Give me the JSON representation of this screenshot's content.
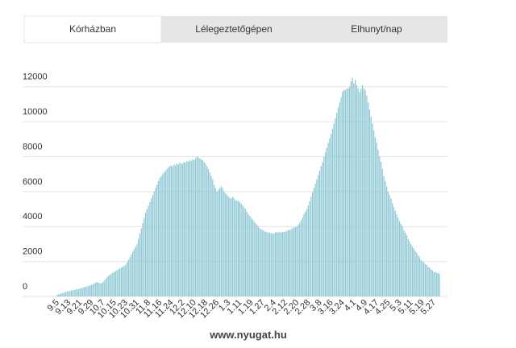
{
  "tabs": [
    "Kórházban",
    "Lélegeztetőgépen",
    "Elhunyt/nap"
  ],
  "source": "www.nyugat.hu",
  "chart_data": {
    "type": "bar",
    "color": "#8ec9d5",
    "grid": true,
    "ylim": [
      0,
      13000
    ],
    "yticks": [
      0,
      2000,
      4000,
      6000,
      8000,
      10000,
      12000
    ],
    "categories": [
      "9.5",
      null,
      null,
      null,
      null,
      null,
      null,
      null,
      "9.13",
      null,
      null,
      null,
      null,
      null,
      null,
      null,
      "9.21",
      null,
      null,
      null,
      null,
      null,
      null,
      null,
      "9.29",
      null,
      null,
      null,
      null,
      null,
      null,
      null,
      "10.7",
      null,
      null,
      null,
      null,
      null,
      null,
      null,
      "10.15",
      null,
      null,
      null,
      null,
      null,
      null,
      null,
      "10.23",
      null,
      null,
      null,
      null,
      null,
      null,
      null,
      "10.31",
      null,
      null,
      null,
      null,
      null,
      null,
      null,
      "11.8",
      null,
      null,
      null,
      null,
      null,
      null,
      null,
      "11.16",
      null,
      null,
      null,
      null,
      null,
      null,
      null,
      "11.24",
      null,
      null,
      null,
      null,
      null,
      null,
      null,
      "12.2",
      null,
      null,
      null,
      null,
      null,
      null,
      null,
      "12.10",
      null,
      null,
      null,
      null,
      null,
      null,
      null,
      "12.18",
      null,
      null,
      null,
      null,
      null,
      null,
      null,
      "12.26",
      null,
      null,
      null,
      null,
      null,
      null,
      null,
      "1.3",
      null,
      null,
      null,
      null,
      null,
      null,
      null,
      "1.11",
      null,
      null,
      null,
      null,
      null,
      null,
      null,
      "1.19",
      null,
      null,
      null,
      null,
      null,
      null,
      null,
      "1.27",
      null,
      null,
      null,
      null,
      null,
      null,
      null,
      "2.4",
      null,
      null,
      null,
      null,
      null,
      null,
      null,
      "2.12",
      null,
      null,
      null,
      null,
      null,
      null,
      null,
      "2.20",
      null,
      null,
      null,
      null,
      null,
      null,
      null,
      "2.28",
      null,
      null,
      null,
      null,
      null,
      null,
      null,
      "3.8",
      null,
      null,
      null,
      null,
      null,
      null,
      null,
      "3.16",
      null,
      null,
      null,
      null,
      null,
      null,
      null,
      "3.24",
      null,
      null,
      null,
      null,
      null,
      null,
      null,
      "4.1",
      null,
      null,
      null,
      null,
      null,
      null,
      null,
      "4.9",
      null,
      null,
      null,
      null,
      null,
      null,
      null,
      "4.17",
      null,
      null,
      null,
      null,
      null,
      null,
      null,
      "4.25",
      null,
      null,
      null,
      null,
      null,
      null,
      null,
      "5.3",
      null,
      null,
      null,
      null,
      null,
      null,
      null,
      "5.11",
      null,
      null,
      null,
      null,
      null,
      null,
      null,
      "5.19",
      null,
      null,
      null,
      null,
      null,
      null,
      null,
      "5.27",
      null,
      null,
      null,
      null
    ],
    "values": [
      100,
      120,
      150,
      170,
      200,
      230,
      250,
      280,
      300,
      320,
      340,
      350,
      370,
      390,
      410,
      430,
      450,
      480,
      500,
      530,
      550,
      580,
      600,
      630,
      650,
      700,
      750,
      800,
      820,
      780,
      760,
      760,
      800,
      900,
      1000,
      1100,
      1200,
      1250,
      1300,
      1350,
      1400,
      1450,
      1500,
      1550,
      1600,
      1650,
      1700,
      1750,
      1800,
      1950,
      2100,
      2250,
      2400,
      2550,
      2700,
      2850,
      3000,
      3300,
      3600,
      3900,
      4200,
      4500,
      4800,
      5000,
      5200,
      5400,
      5600,
      5800,
      6000,
      6200,
      6400,
      6600,
      6800,
      6900,
      7000,
      7100,
      7200,
      7300,
      7400,
      7450,
      7500,
      7450,
      7550,
      7500,
      7600,
      7550,
      7650,
      7600,
      7600,
      7700,
      7650,
      7750,
      7700,
      7800,
      7750,
      7850,
      7800,
      7900,
      8000,
      7950,
      7900,
      7850,
      7800,
      7700,
      7600,
      7450,
      7300,
      7100,
      6900,
      6700,
      6400,
      6200,
      6000,
      6100,
      6200,
      6300,
      6200,
      6000,
      5900,
      5800,
      5700,
      5650,
      5600,
      5700,
      5600,
      5500,
      5500,
      5450,
      5400,
      5300,
      5200,
      5100,
      5000,
      4850,
      4700,
      4600,
      4500,
      4400,
      4300,
      4200,
      4100,
      4000,
      3900,
      3850,
      3800,
      3750,
      3700,
      3700,
      3650,
      3650,
      3600,
      3600,
      3600,
      3650,
      3700,
      3650,
      3700,
      3650,
      3700,
      3700,
      3700,
      3750,
      3800,
      3800,
      3850,
      3900,
      3950,
      3950,
      4000,
      4100,
      4200,
      4350,
      4500,
      4700,
      4850,
      5000,
      5200,
      5450,
      5700,
      5950,
      6200,
      6450,
      6700,
      6950,
      7200,
      7450,
      7700,
      8000,
      8250,
      8500,
      8800,
      9050,
      9300,
      9600,
      9900,
      10200,
      10500,
      10800,
      11100,
      11400,
      11700,
      11800,
      11800,
      11900,
      11900,
      12000,
      12300,
      12500,
      12200,
      12400,
      12100,
      11900,
      11700,
      11900,
      12100,
      11900,
      11800,
      11500,
      11100,
      10700,
      10300,
      9900,
      9500,
      9100,
      8800,
      8400,
      8000,
      7700,
      7300,
      6900,
      6600,
      6300,
      6000,
      5800,
      5600,
      5350,
      5100,
      4900,
      4700,
      4500,
      4300,
      4150,
      4000,
      3800,
      3650,
      3500,
      3300,
      3150,
      3000,
      2850,
      2750,
      2600,
      2500,
      2350,
      2250,
      2100,
      2000,
      1950,
      1850,
      1800,
      1700,
      1650,
      1550,
      1500,
      1400,
      1400,
      1350,
      1350,
      1300
    ]
  }
}
